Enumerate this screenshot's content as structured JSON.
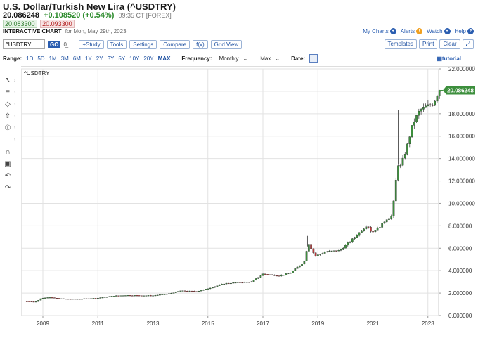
{
  "header": {
    "title": "U.S. Dollar/Turkish New Lira (^USDTRY)",
    "last": "20.086248",
    "change": "+0.108520 (+0.54%)",
    "time": "09:35 CT [FOREX]",
    "bid": "20.083300",
    "ask": "20.093300",
    "subtitle": "INTERACTIVE CHART",
    "date_text": "for Mon, May 29th, 2023"
  },
  "links": {
    "my_charts": "My Charts",
    "alerts": "Alerts",
    "watch": "Watch",
    "help": "Help"
  },
  "toolbar": {
    "symbol": "^USDTRY",
    "go": "GO",
    "misc": "0̲",
    "study": "+Study",
    "tools": "Tools",
    "settings": "Settings",
    "compare": "Compare",
    "fx": "f(x)",
    "grid_view": "Grid View",
    "templates": "Templates",
    "print": "Print",
    "clear": "Clear",
    "expand_icon": "⤢"
  },
  "range": {
    "label": "Range:",
    "items": [
      "1D",
      "5D",
      "1M",
      "3M",
      "6M",
      "1Y",
      "2Y",
      "3Y",
      "5Y",
      "10Y",
      "20Y",
      "MAX"
    ],
    "active": "MAX",
    "frequency_label": "Frequency:",
    "frequency": "Monthly",
    "type": "Max",
    "date_label": "Date:",
    "tutorial": "tutorial"
  },
  "left_tools": [
    {
      "name": "crosshair-icon",
      "glyph": "↖"
    },
    {
      "name": "line-tool-icon",
      "glyph": "≡"
    },
    {
      "name": "shape-tool-icon",
      "glyph": "◇"
    },
    {
      "name": "arrow-tool-icon",
      "glyph": "⇧"
    },
    {
      "name": "annotation-icon",
      "glyph": "①"
    },
    {
      "name": "fib-tool-icon",
      "glyph": "∷"
    },
    {
      "name": "magnet-icon",
      "glyph": "∩"
    },
    {
      "name": "lock-icon",
      "glyph": "▣"
    },
    {
      "name": "undo-icon",
      "glyph": "↶"
    },
    {
      "name": "redo-icon",
      "glyph": "↷"
    }
  ],
  "chart_data": {
    "type": "candlestick",
    "symbol_label": "^USDTRY",
    "ylim": [
      0,
      22
    ],
    "y_ticks": [
      "22.000000",
      "20.000000",
      "18.000000",
      "16.000000",
      "14.000000",
      "12.000000",
      "10.000000",
      "8.000000",
      "6.000000",
      "4.000000",
      "2.000000",
      "0.000000"
    ],
    "x_ticks": [
      "2009",
      "2011",
      "2013",
      "2015",
      "2017",
      "2019",
      "2021",
      "2023"
    ],
    "last_label": "20.086248",
    "grid": true,
    "colors": {
      "up": "#3d8f3d",
      "down": "#c23a3a",
      "last_bg": "#3d8f3d"
    },
    "keypoints": [
      [
        2008.4,
        1.27
      ],
      [
        2008.75,
        1.23
      ],
      [
        2008.95,
        1.55
      ],
      [
        2009.2,
        1.62
      ],
      [
        2009.6,
        1.5
      ],
      [
        2010.0,
        1.47
      ],
      [
        2010.6,
        1.5
      ],
      [
        2011.0,
        1.56
      ],
      [
        2011.6,
        1.75
      ],
      [
        2012.0,
        1.8
      ],
      [
        2012.6,
        1.78
      ],
      [
        2013.0,
        1.78
      ],
      [
        2013.6,
        1.95
      ],
      [
        2014.0,
        2.2
      ],
      [
        2014.6,
        2.15
      ],
      [
        2015.0,
        2.4
      ],
      [
        2015.6,
        2.85
      ],
      [
        2016.0,
        2.93
      ],
      [
        2016.6,
        3.0
      ],
      [
        2017.0,
        3.7
      ],
      [
        2017.6,
        3.55
      ],
      [
        2018.0,
        3.8
      ],
      [
        2018.5,
        4.8
      ],
      [
        2018.65,
        6.5
      ],
      [
        2018.9,
        5.3
      ],
      [
        2019.3,
        5.7
      ],
      [
        2019.8,
        5.8
      ],
      [
        2020.3,
        6.9
      ],
      [
        2020.8,
        8.1
      ],
      [
        2020.95,
        7.4
      ],
      [
        2021.2,
        7.8
      ],
      [
        2021.5,
        8.6
      ],
      [
        2021.7,
        8.9
      ],
      [
        2021.8,
        11.2
      ],
      [
        2021.9,
        13.5
      ],
      [
        2022.0,
        13.3
      ],
      [
        2022.2,
        14.7
      ],
      [
        2022.45,
        17.1
      ],
      [
        2022.7,
        18.3
      ],
      [
        2022.9,
        18.6
      ],
      [
        2023.2,
        18.9
      ],
      [
        2023.4,
        20.09
      ]
    ],
    "x_start": 2008.42,
    "x_end": 2023.42,
    "spikes": [
      [
        2021.92,
        18.3
      ],
      [
        2018.62,
        7.1
      ]
    ]
  }
}
